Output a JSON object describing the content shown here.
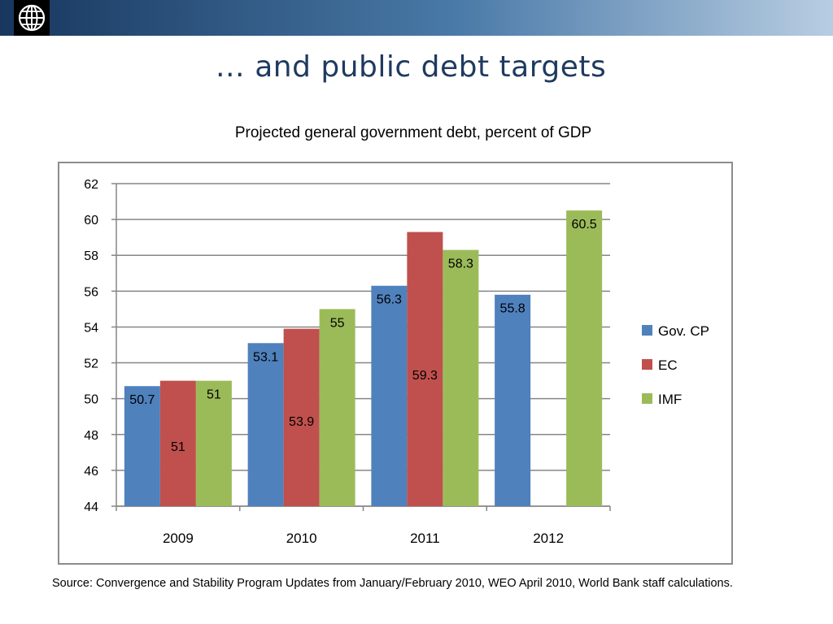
{
  "header": {
    "logo_icon": "globe-icon",
    "title": "… and public debt targets"
  },
  "subtitle": "Projected general government debt, percent of GDP",
  "source": "Source: Convergence  and Stability Program Updates from January/February 2010, WEO April 2010, World Bank staff calculations.",
  "chart_data": {
    "type": "bar",
    "categories": [
      "2009",
      "2010",
      "2011",
      "2012"
    ],
    "series": [
      {
        "name": "Gov. CP",
        "color": "#4f81bd",
        "values": [
          50.7,
          53.1,
          56.3,
          55.8
        ],
        "labels": [
          "50.7",
          "53.1",
          "56.3",
          "55.8"
        ]
      },
      {
        "name": "EC",
        "color": "#c0504d",
        "values": [
          51,
          53.9,
          59.3,
          null
        ],
        "labels": [
          "51",
          "53.9",
          "59.3",
          null
        ]
      },
      {
        "name": "IMF",
        "color": "#9bbb59",
        "values": [
          51,
          55,
          58.3,
          60.5
        ],
        "labels": [
          "51",
          "55",
          "58.3",
          "60.5"
        ]
      }
    ],
    "ylim": [
      44,
      62
    ],
    "yticks": [
      "44",
      "46",
      "48",
      "50",
      "52",
      "54",
      "56",
      "58",
      "60",
      "62"
    ],
    "grid": true,
    "legend_position": "right"
  }
}
